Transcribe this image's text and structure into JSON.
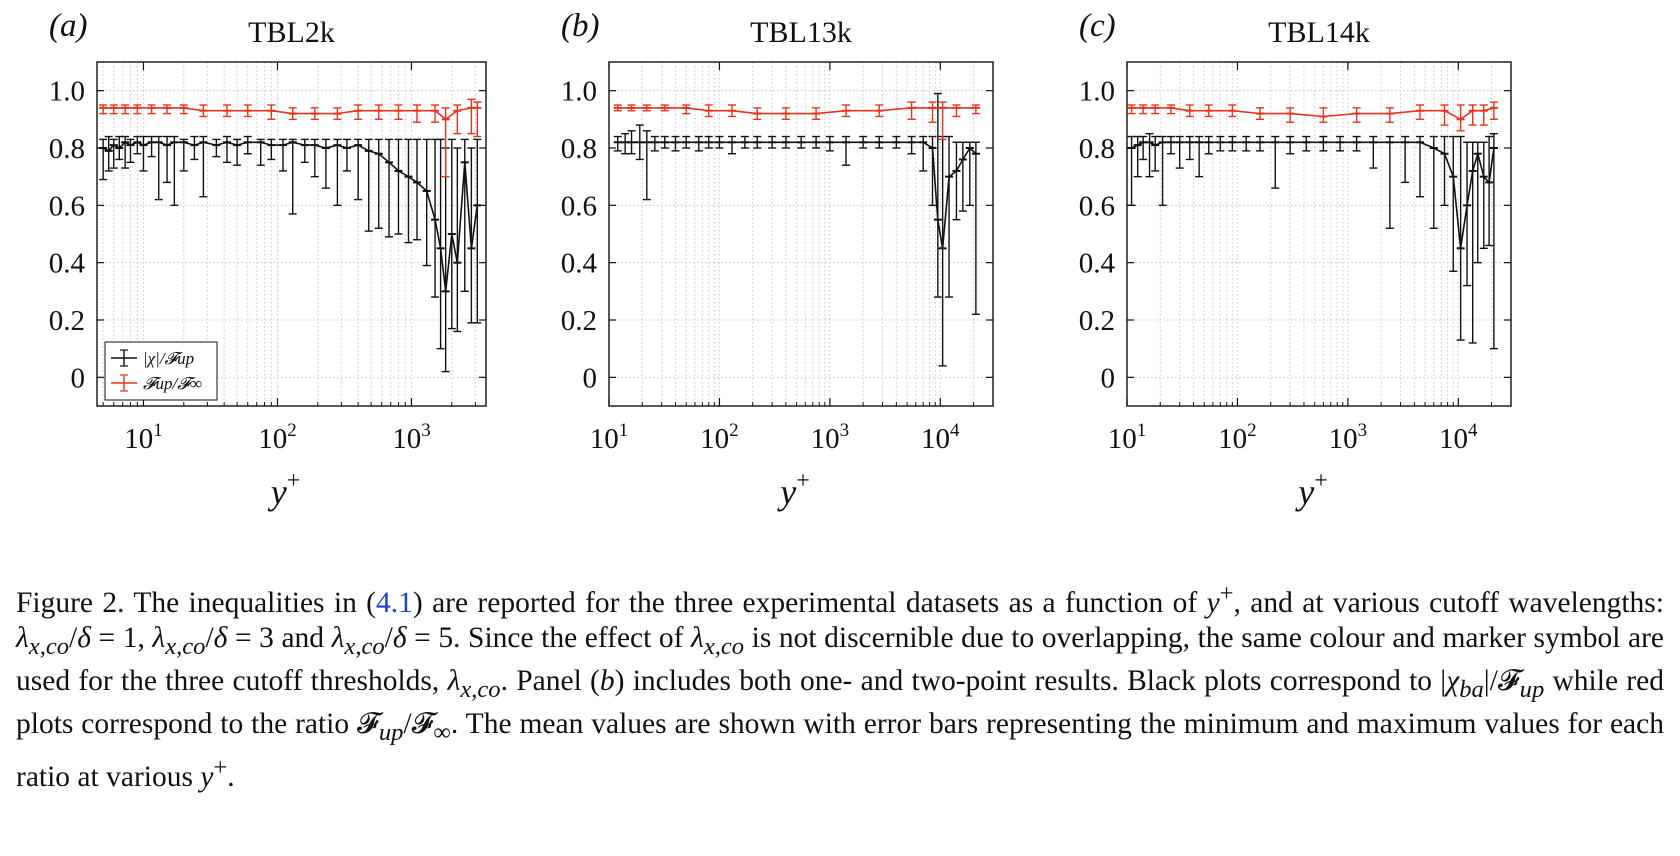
{
  "colors": {
    "black_series": "#111111",
    "red_series": "#e8331c",
    "grid": "#c8c8c8",
    "caption_link": "#1f3fd6"
  },
  "legend": {
    "entries": [
      {
        "label": "|χ|/𝓕up",
        "color": "#111111"
      },
      {
        "label": "𝓕up/𝓕∞",
        "color": "#e8331c"
      }
    ],
    "placement": "bottom-left of panel (a)"
  },
  "panels": [
    {
      "letter": "(a)",
      "title": "TBL2k",
      "xlabel": "y+",
      "xlim": [
        4.5,
        3600
      ],
      "ylim": [
        -0.1,
        1.1
      ],
      "xticks": [
        {
          "v": 10,
          "label": "10",
          "exp": "1"
        },
        {
          "v": 100,
          "label": "10",
          "exp": "2"
        },
        {
          "v": 1000,
          "label": "10",
          "exp": "3"
        }
      ],
      "yticks": [
        {
          "v": 1.0,
          "label": "1.0"
        },
        {
          "v": 0.8,
          "label": "0.8"
        },
        {
          "v": 0.6,
          "label": "0.6"
        },
        {
          "v": 0.4,
          "label": "0.4"
        },
        {
          "v": 0.2,
          "label": "0.2"
        },
        {
          "v": 0,
          "label": "0"
        }
      ]
    },
    {
      "letter": "(b)",
      "title": "TBL13k",
      "xlabel": "y+",
      "xlim": [
        10,
        30000
      ],
      "ylim": [
        -0.1,
        1.1
      ],
      "xticks": [
        {
          "v": 10,
          "label": "10",
          "exp": "1"
        },
        {
          "v": 100,
          "label": "10",
          "exp": "2"
        },
        {
          "v": 1000,
          "label": "10",
          "exp": "3"
        },
        {
          "v": 10000,
          "label": "10",
          "exp": "4"
        }
      ],
      "yticks": [
        {
          "v": 1.0,
          "label": "1.0"
        },
        {
          "v": 0.8,
          "label": "0.8"
        },
        {
          "v": 0.6,
          "label": "0.6"
        },
        {
          "v": 0.4,
          "label": "0.4"
        },
        {
          "v": 0.2,
          "label": "0.2"
        },
        {
          "v": 0,
          "label": "0"
        }
      ]
    },
    {
      "letter": "(c)",
      "title": "TBL14k",
      "xlabel": "y+",
      "xlim": [
        10,
        30000
      ],
      "ylim": [
        -0.1,
        1.1
      ],
      "xticks": [
        {
          "v": 10,
          "label": "10",
          "exp": "1"
        },
        {
          "v": 100,
          "label": "10",
          "exp": "2"
        },
        {
          "v": 1000,
          "label": "10",
          "exp": "3"
        },
        {
          "v": 10000,
          "label": "10",
          "exp": "4"
        }
      ],
      "yticks": [
        {
          "v": 1.0,
          "label": "1.0"
        },
        {
          "v": 0.8,
          "label": "0.8"
        },
        {
          "v": 0.6,
          "label": "0.6"
        },
        {
          "v": 0.4,
          "label": "0.4"
        },
        {
          "v": 0.2,
          "label": "0.2"
        },
        {
          "v": 0,
          "label": "0"
        }
      ]
    }
  ],
  "chart_data": [
    {
      "type": "line",
      "title": "TBL2k",
      "xlabel": "y+",
      "xscale": "log",
      "xlim": [
        4.5,
        3600
      ],
      "ylim": [
        -0.1,
        1.1
      ],
      "grid": true,
      "legend": "bottom-left",
      "series": [
        {
          "name": "|χ|/𝓕up",
          "color": "#111111",
          "x": [
            5,
            5.5,
            6,
            6.6,
            7.3,
            8,
            9,
            10,
            11.5,
            13,
            15,
            17,
            20,
            24,
            28,
            35,
            42,
            50,
            60,
            75,
            90,
            110,
            130,
            160,
            190,
            230,
            280,
            330,
            400,
            480,
            570,
            680,
            800,
            950,
            1100,
            1300,
            1500,
            1650,
            1800,
            2000,
            2200,
            2500,
            2800,
            3100
          ],
          "y": [
            0.8,
            0.79,
            0.81,
            0.8,
            0.82,
            0.81,
            0.82,
            0.81,
            0.82,
            0.82,
            0.81,
            0.82,
            0.82,
            0.81,
            0.82,
            0.81,
            0.82,
            0.81,
            0.82,
            0.82,
            0.81,
            0.81,
            0.82,
            0.81,
            0.81,
            0.8,
            0.81,
            0.8,
            0.81,
            0.79,
            0.78,
            0.75,
            0.72,
            0.7,
            0.68,
            0.65,
            0.55,
            0.45,
            0.3,
            0.5,
            0.4,
            0.75,
            0.45,
            0.6
          ],
          "ymin": [
            0.69,
            0.72,
            0.73,
            0.76,
            0.73,
            0.75,
            0.78,
            0.72,
            0.77,
            0.62,
            0.68,
            0.6,
            0.72,
            0.76,
            0.63,
            0.77,
            0.75,
            0.74,
            0.78,
            0.74,
            0.76,
            0.72,
            0.57,
            0.75,
            0.7,
            0.66,
            0.6,
            0.72,
            0.62,
            0.51,
            0.52,
            0.49,
            0.5,
            0.47,
            0.48,
            0.39,
            0.28,
            0.1,
            0.02,
            0.17,
            0.16,
            0.3,
            0.19,
            0.19
          ],
          "ymax": [
            0.83,
            0.84,
            0.83,
            0.84,
            0.84,
            0.83,
            0.84,
            0.84,
            0.84,
            0.84,
            0.84,
            0.84,
            0.83,
            0.84,
            0.84,
            0.83,
            0.84,
            0.83,
            0.84,
            0.83,
            0.83,
            0.83,
            0.83,
            0.83,
            0.83,
            0.83,
            0.83,
            0.83,
            0.83,
            0.83,
            0.83,
            0.83,
            0.83,
            0.83,
            0.83,
            0.83,
            0.83,
            0.83,
            0.8,
            0.83,
            0.8,
            0.83,
            0.8,
            0.83
          ]
        },
        {
          "name": "𝓕up/𝓕∞",
          "color": "#e8331c",
          "x": [
            5,
            6,
            7.3,
            9,
            11.5,
            15,
            20,
            28,
            42,
            60,
            90,
            130,
            190,
            280,
            400,
            570,
            800,
            1100,
            1500,
            1800,
            2200,
            2800,
            3100
          ],
          "y": [
            0.94,
            0.94,
            0.94,
            0.94,
            0.94,
            0.94,
            0.94,
            0.93,
            0.93,
            0.93,
            0.93,
            0.92,
            0.92,
            0.92,
            0.93,
            0.93,
            0.93,
            0.93,
            0.93,
            0.9,
            0.93,
            0.94,
            0.94
          ],
          "ymin": [
            0.92,
            0.92,
            0.92,
            0.92,
            0.92,
            0.92,
            0.92,
            0.91,
            0.91,
            0.91,
            0.9,
            0.9,
            0.9,
            0.9,
            0.9,
            0.9,
            0.9,
            0.89,
            0.89,
            0.7,
            0.85,
            0.85,
            0.84
          ],
          "ymax": [
            0.95,
            0.95,
            0.95,
            0.95,
            0.95,
            0.95,
            0.95,
            0.95,
            0.95,
            0.95,
            0.95,
            0.94,
            0.94,
            0.94,
            0.95,
            0.95,
            0.95,
            0.95,
            0.95,
            0.94,
            0.95,
            0.97,
            0.96
          ]
        }
      ]
    },
    {
      "type": "line",
      "title": "TBL13k",
      "xlabel": "y+",
      "xscale": "log",
      "xlim": [
        10,
        30000
      ],
      "ylim": [
        -0.1,
        1.1
      ],
      "grid": true,
      "series": [
        {
          "name": "|χ|/𝓕up",
          "color": "#111111",
          "x": [
            12,
            14,
            16,
            19,
            22,
            26,
            32,
            40,
            50,
            65,
            80,
            100,
            130,
            170,
            220,
            300,
            400,
            550,
            750,
            1000,
            1400,
            2000,
            2800,
            4000,
            5500,
            7000,
            8500,
            9500,
            10500,
            12000,
            14000,
            16000,
            18500,
            21000
          ],
          "y": [
            0.82,
            0.82,
            0.82,
            0.82,
            0.82,
            0.82,
            0.82,
            0.82,
            0.82,
            0.82,
            0.82,
            0.82,
            0.82,
            0.82,
            0.82,
            0.82,
            0.82,
            0.82,
            0.82,
            0.82,
            0.82,
            0.82,
            0.82,
            0.82,
            0.82,
            0.82,
            0.8,
            0.55,
            0.45,
            0.7,
            0.72,
            0.76,
            0.8,
            0.78
          ],
          "ymin": [
            0.79,
            0.78,
            0.78,
            0.76,
            0.62,
            0.79,
            0.8,
            0.79,
            0.8,
            0.79,
            0.8,
            0.8,
            0.78,
            0.8,
            0.8,
            0.8,
            0.8,
            0.8,
            0.8,
            0.79,
            0.74,
            0.8,
            0.8,
            0.8,
            0.78,
            0.72,
            0.6,
            0.28,
            0.04,
            0.28,
            0.55,
            0.58,
            0.6,
            0.22
          ],
          "ymax": [
            0.84,
            0.85,
            0.86,
            0.88,
            0.86,
            0.84,
            0.84,
            0.84,
            0.84,
            0.84,
            0.84,
            0.84,
            0.84,
            0.84,
            0.84,
            0.84,
            0.84,
            0.84,
            0.84,
            0.84,
            0.84,
            0.84,
            0.84,
            0.84,
            0.84,
            0.84,
            0.84,
            0.99,
            0.84,
            0.84,
            0.82,
            0.82,
            0.82,
            0.82
          ]
        },
        {
          "name": "𝓕up/𝓕∞",
          "color": "#e8331c",
          "x": [
            12,
            16,
            22,
            32,
            50,
            80,
            130,
            220,
            400,
            750,
            1400,
            2800,
            5500,
            8500,
            10500,
            14000,
            21000
          ],
          "y": [
            0.94,
            0.94,
            0.94,
            0.94,
            0.94,
            0.93,
            0.93,
            0.92,
            0.92,
            0.92,
            0.93,
            0.93,
            0.94,
            0.94,
            0.94,
            0.94,
            0.94
          ],
          "ymin": [
            0.93,
            0.93,
            0.93,
            0.93,
            0.92,
            0.91,
            0.91,
            0.9,
            0.9,
            0.9,
            0.91,
            0.91,
            0.9,
            0.89,
            0.83,
            0.91,
            0.92
          ],
          "ymax": [
            0.95,
            0.95,
            0.95,
            0.95,
            0.95,
            0.95,
            0.95,
            0.94,
            0.94,
            0.94,
            0.95,
            0.95,
            0.96,
            0.96,
            0.96,
            0.95,
            0.95
          ]
        }
      ]
    },
    {
      "type": "line",
      "title": "TBL14k",
      "xlabel": "y+",
      "xscale": "log",
      "xlim": [
        10,
        30000
      ],
      "ylim": [
        -0.1,
        1.1
      ],
      "grid": true,
      "series": [
        {
          "name": "|χ|/𝓕up",
          "color": "#111111",
          "x": [
            11,
            12.5,
            14,
            16,
            18,
            21,
            25,
            30,
            37,
            45,
            55,
            70,
            90,
            120,
            160,
            220,
            300,
            420,
            600,
            850,
            1200,
            1700,
            2400,
            3300,
            4500,
            6000,
            7500,
            9000,
            10500,
            12000,
            13500,
            15000,
            17000,
            19000,
            21000
          ],
          "y": [
            0.8,
            0.81,
            0.82,
            0.82,
            0.81,
            0.82,
            0.82,
            0.82,
            0.82,
            0.82,
            0.82,
            0.82,
            0.82,
            0.82,
            0.82,
            0.82,
            0.82,
            0.82,
            0.82,
            0.82,
            0.82,
            0.82,
            0.82,
            0.82,
            0.82,
            0.8,
            0.78,
            0.7,
            0.45,
            0.6,
            0.72,
            0.78,
            0.7,
            0.68,
            0.8
          ],
          "ymin": [
            0.6,
            0.7,
            0.76,
            0.7,
            0.72,
            0.6,
            0.78,
            0.73,
            0.76,
            0.7,
            0.78,
            0.79,
            0.79,
            0.79,
            0.79,
            0.66,
            0.78,
            0.79,
            0.79,
            0.79,
            0.79,
            0.73,
            0.52,
            0.68,
            0.63,
            0.52,
            0.6,
            0.37,
            0.13,
            0.32,
            0.12,
            0.4,
            0.45,
            0.46,
            0.1
          ],
          "ymax": [
            0.84,
            0.84,
            0.84,
            0.85,
            0.84,
            0.84,
            0.84,
            0.84,
            0.84,
            0.84,
            0.84,
            0.84,
            0.84,
            0.84,
            0.84,
            0.84,
            0.84,
            0.84,
            0.84,
            0.84,
            0.84,
            0.84,
            0.84,
            0.84,
            0.84,
            0.84,
            0.84,
            0.84,
            0.84,
            0.82,
            0.82,
            0.82,
            0.82,
            0.84,
            0.85
          ]
        },
        {
          "name": "𝓕up/𝓕∞",
          "color": "#e8331c",
          "x": [
            11,
            14,
            18,
            25,
            37,
            55,
            90,
            160,
            300,
            600,
            1200,
            2400,
            4500,
            7500,
            10500,
            13500,
            17000,
            21000
          ],
          "y": [
            0.94,
            0.94,
            0.94,
            0.94,
            0.93,
            0.93,
            0.93,
            0.92,
            0.92,
            0.91,
            0.92,
            0.92,
            0.93,
            0.93,
            0.9,
            0.93,
            0.93,
            0.94
          ],
          "ymin": [
            0.92,
            0.92,
            0.92,
            0.92,
            0.91,
            0.91,
            0.91,
            0.9,
            0.89,
            0.89,
            0.89,
            0.89,
            0.9,
            0.88,
            0.86,
            0.88,
            0.88,
            0.9
          ],
          "ymax": [
            0.95,
            0.95,
            0.95,
            0.95,
            0.95,
            0.95,
            0.95,
            0.94,
            0.94,
            0.94,
            0.94,
            0.94,
            0.95,
            0.95,
            0.95,
            0.95,
            0.95,
            0.96
          ]
        }
      ]
    }
  ],
  "caption": {
    "figure_label": "Figure 2.",
    "ref_label": "4.1",
    "y_sym": "y",
    "plus": "+",
    "lambda": "λ",
    "lambda_sub": "x,co",
    "delta": "δ",
    "p1_a": " The inequalities in (",
    "p1_b": ") are reported for the three experimental datasets as a function of ",
    "p1_c": ", and at various cutoff wavelengths: ",
    "eq_1": " = 1, ",
    "eq_3": " = 3 and ",
    "eq_5": " = 5. Since the effect of ",
    "p2": " is not discernible due to overlapping, the same colour and marker symbol are used for the three cutoff thresholds, ",
    "p3_a": ". Panel (",
    "panel_b": "b",
    "p3_b": ") includes both one- and two-point results. Black plots correspond to |",
    "chi": "χ",
    "chi_sub": "ba",
    "p3_c": "|/",
    "F": "𝓕",
    "up": "up",
    "inf": "∞",
    "p4": " while red plots correspond to the ratio ",
    "p5": ". The mean values are shown with error bars representing the minimum and maximum values for each ratio at various ",
    "p6": "."
  }
}
